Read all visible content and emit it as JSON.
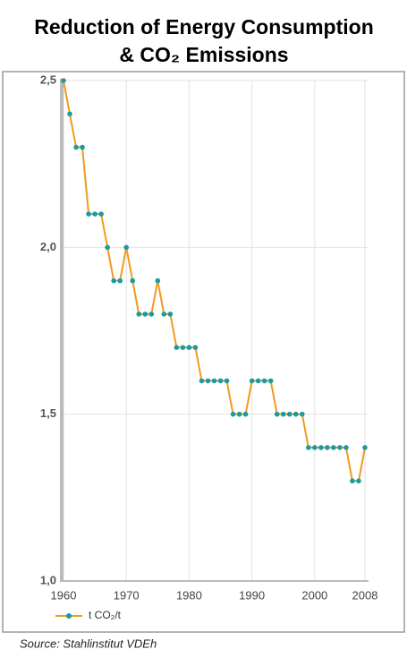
{
  "chart_data": {
    "type": "line",
    "title": [
      "Reduction of Energy Consumption",
      "& CO₂ Emissions"
    ],
    "x": [
      1960,
      1961,
      1962,
      1963,
      1964,
      1965,
      1966,
      1967,
      1968,
      1969,
      1970,
      1971,
      1972,
      1973,
      1974,
      1975,
      1976,
      1977,
      1978,
      1979,
      1980,
      1981,
      1982,
      1983,
      1984,
      1985,
      1986,
      1987,
      1988,
      1989,
      1990,
      1991,
      1992,
      1993,
      1994,
      1995,
      1996,
      1997,
      1998,
      1999,
      2000,
      2001,
      2002,
      2003,
      2004,
      2005,
      2006,
      2007,
      2008
    ],
    "series": [
      {
        "name": "t CO₂/t",
        "color": "#f29a1d",
        "marker_color": "#1b9aa0",
        "values": [
          2.5,
          2.4,
          2.3,
          2.3,
          2.1,
          2.1,
          2.1,
          2.0,
          1.9,
          1.9,
          2.0,
          1.9,
          1.8,
          1.8,
          1.8,
          1.9,
          1.8,
          1.8,
          1.7,
          1.7,
          1.7,
          1.7,
          1.6,
          1.6,
          1.6,
          1.6,
          1.6,
          1.5,
          1.5,
          1.5,
          1.6,
          1.6,
          1.6,
          1.6,
          1.5,
          1.5,
          1.5,
          1.5,
          1.5,
          1.4,
          1.4,
          1.4,
          1.4,
          1.4,
          1.4,
          1.4,
          1.3,
          1.3,
          1.4
        ]
      }
    ],
    "xlim": [
      1960,
      2008
    ],
    "xticks": [
      1960,
      1970,
      1980,
      1990,
      2000,
      2008
    ],
    "ylim": [
      1.0,
      2.5
    ],
    "yticks": [
      {
        "value": 1.0,
        "label": "1,0"
      },
      {
        "value": 1.5,
        "label": "1,5"
      },
      {
        "value": 2.0,
        "label": "2,0"
      },
      {
        "value": 2.5,
        "label": "2,5"
      }
    ],
    "grid": true,
    "legend": "bottom-left",
    "annotation": "Source: Stahlinstitut VDEh"
  }
}
